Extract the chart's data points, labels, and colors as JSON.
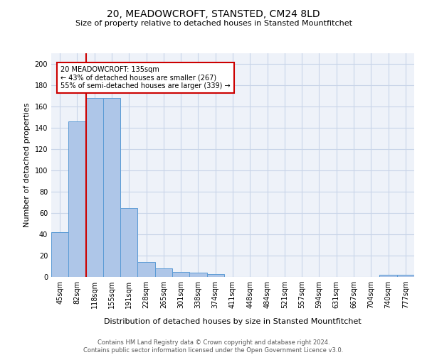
{
  "title": "20, MEADOWCROFT, STANSTED, CM24 8LD",
  "subtitle": "Size of property relative to detached houses in Stansted Mountfitchet",
  "xlabel": "Distribution of detached houses by size in Stansted Mountfitchet",
  "ylabel": "Number of detached properties",
  "categories": [
    "45sqm",
    "82sqm",
    "118sqm",
    "155sqm",
    "191sqm",
    "228sqm",
    "265sqm",
    "301sqm",
    "338sqm",
    "374sqm",
    "411sqm",
    "448sqm",
    "484sqm",
    "521sqm",
    "557sqm",
    "594sqm",
    "631sqm",
    "667sqm",
    "704sqm",
    "740sqm",
    "777sqm"
  ],
  "values": [
    42,
    146,
    168,
    168,
    65,
    14,
    8,
    5,
    4,
    3,
    0,
    0,
    0,
    0,
    0,
    0,
    0,
    0,
    0,
    2,
    2
  ],
  "bar_color": "#aec6e8",
  "bar_edge_color": "#5b9bd5",
  "vline_color": "#cc0000",
  "vline_x": 1.5,
  "annotation_line1": "20 MEADOWCROFT: 135sqm",
  "annotation_line2": "← 43% of detached houses are smaller (267)",
  "annotation_line3": "55% of semi-detached houses are larger (339) →",
  "annotation_box_color": "#ffffff",
  "annotation_box_edge": "#cc0000",
  "grid_color": "#c8d4e8",
  "background_color": "#eef2f9",
  "footer_line1": "Contains HM Land Registry data © Crown copyright and database right 2024.",
  "footer_line2": "Contains public sector information licensed under the Open Government Licence v3.0.",
  "ylim": [
    0,
    210
  ],
  "yticks": [
    0,
    20,
    40,
    60,
    80,
    100,
    120,
    140,
    160,
    180,
    200
  ],
  "title_fontsize": 10,
  "subtitle_fontsize": 8,
  "ylabel_fontsize": 8,
  "xlabel_fontsize": 8,
  "tick_fontsize": 7,
  "annotation_fontsize": 7,
  "footer_fontsize": 6
}
